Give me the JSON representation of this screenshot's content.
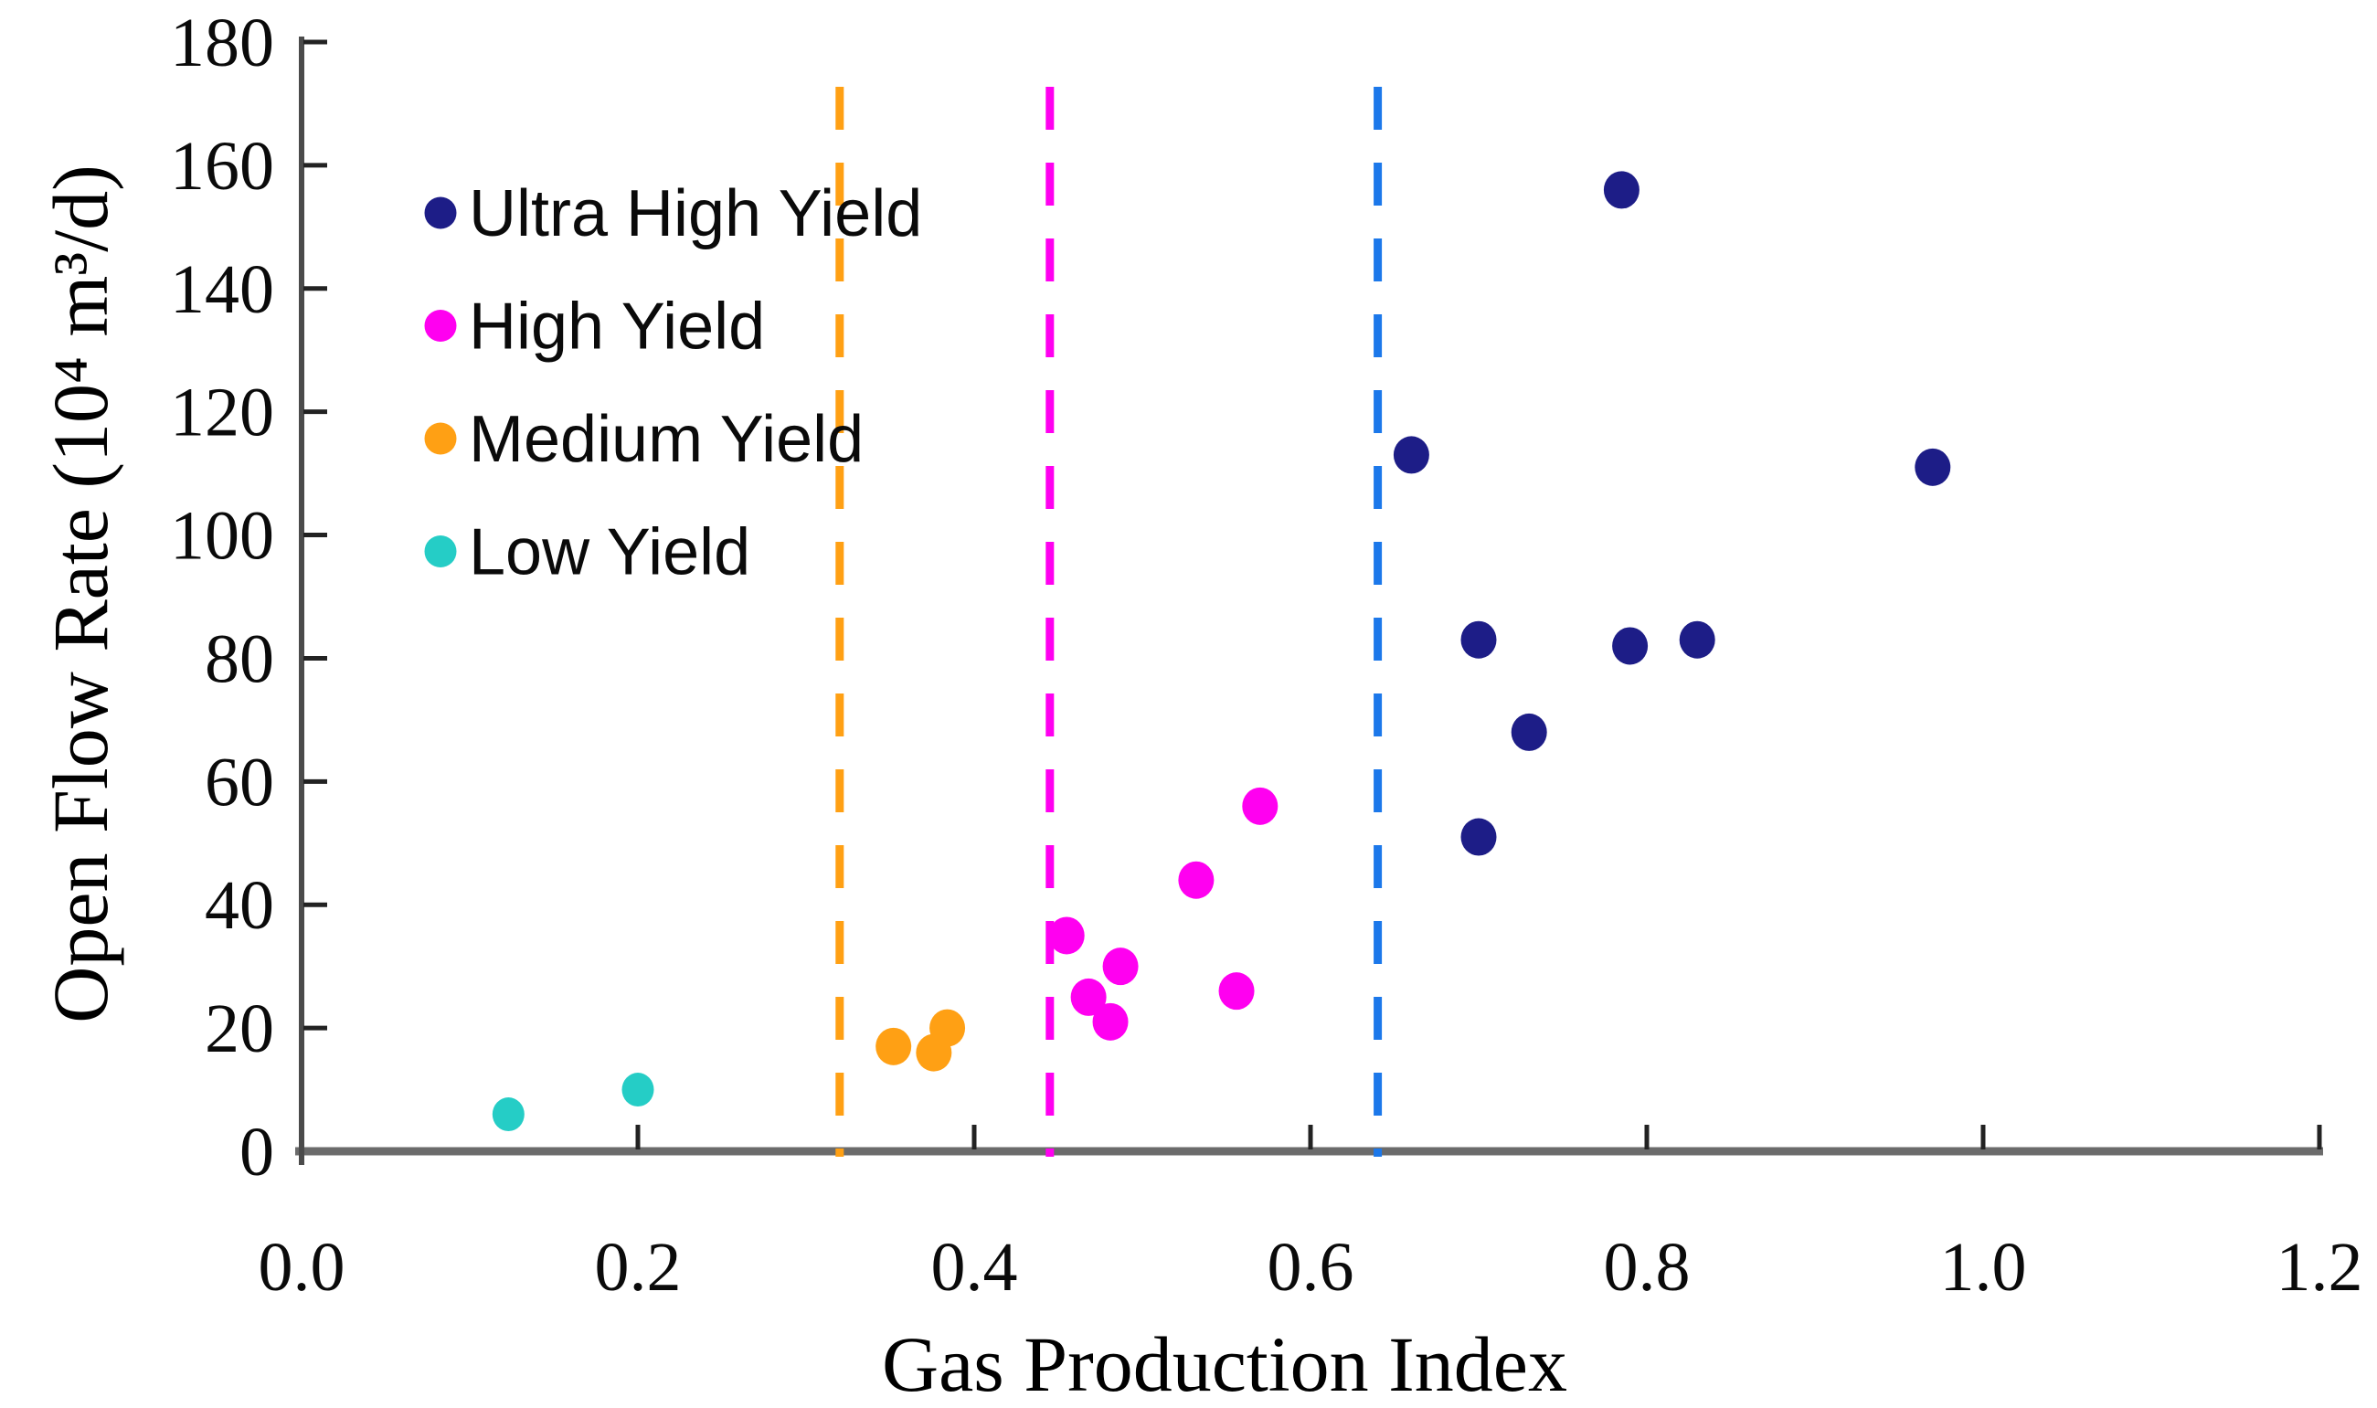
{
  "figure": {
    "x_axis_title": "Gas Production Index",
    "y_axis_title": "Open Flow Rate (10⁴ m³/d)"
  },
  "chart_data": {
    "type": "scatter",
    "title": "",
    "xlabel": "Gas Production Index",
    "ylabel": "Open Flow Rate (10⁴ m³/d)",
    "xlim": [
      0.0,
      1.2
    ],
    "ylim": [
      0,
      180
    ],
    "x_ticks": [
      "0.0",
      "0.2",
      "0.4",
      "0.6",
      "0.8",
      "1.0",
      "1.2"
    ],
    "x_tick_values": [
      0.0,
      0.2,
      0.4,
      0.6,
      0.8,
      1.0,
      1.2
    ],
    "y_ticks": [
      "0",
      "20",
      "40",
      "60",
      "80",
      "100",
      "120",
      "140",
      "160",
      "180"
    ],
    "y_tick_values": [
      0,
      20,
      40,
      60,
      80,
      100,
      120,
      140,
      160,
      180
    ],
    "grid": false,
    "legend_position": "inside-top-left",
    "series": [
      {
        "name": "Ultra High Yield",
        "color": "#1d1d87",
        "points": [
          [
            0.785,
            156
          ],
          [
            0.66,
            113
          ],
          [
            0.97,
            111
          ],
          [
            0.7,
            83
          ],
          [
            0.79,
            82
          ],
          [
            0.83,
            83
          ],
          [
            0.73,
            68
          ],
          [
            0.7,
            51
          ]
        ]
      },
      {
        "name": "High Yield",
        "color": "#ff00f0",
        "points": [
          [
            0.455,
            35
          ],
          [
            0.487,
            30
          ],
          [
            0.468,
            25
          ],
          [
            0.481,
            21
          ],
          [
            0.532,
            44
          ],
          [
            0.556,
            26
          ],
          [
            0.57,
            56
          ]
        ]
      },
      {
        "name": "Medium Yield",
        "color": "#ffa014",
        "points": [
          [
            0.352,
            17
          ],
          [
            0.376,
            16
          ],
          [
            0.384,
            20
          ]
        ]
      },
      {
        "name": "Low Yield",
        "color": "#25cdc6",
        "points": [
          [
            0.123,
            6
          ],
          [
            0.2,
            10
          ]
        ]
      }
    ],
    "threshold_lines": [
      {
        "x": 0.32,
        "color": "#ffa014",
        "style": "dashed"
      },
      {
        "x": 0.445,
        "color": "#ff00f0",
        "style": "dashed"
      },
      {
        "x": 0.64,
        "color": "#1c78ea",
        "style": "dashed"
      }
    ]
  }
}
